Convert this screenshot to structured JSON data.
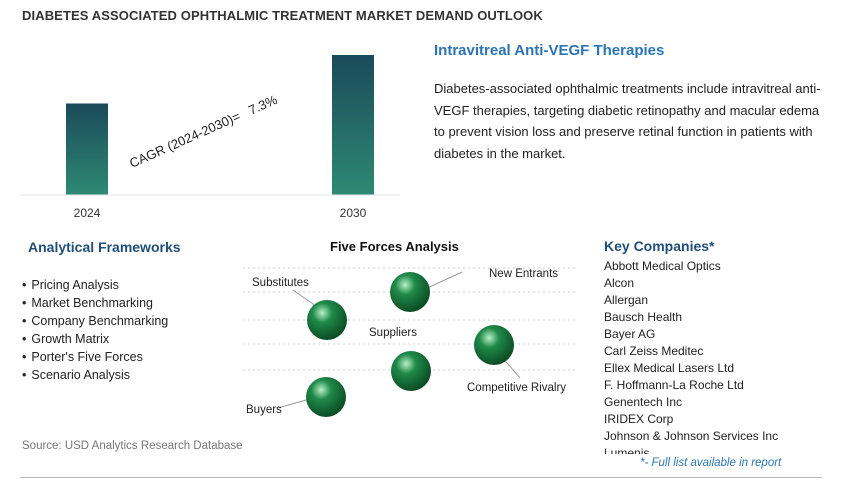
{
  "header": {
    "title": "DIABETES ASSOCIATED OPHTHALMIC TREATMENT MARKET DEMAND OUTLOOK"
  },
  "chart_data": {
    "type": "bar",
    "categories": [
      "2024",
      "2030"
    ],
    "values": [
      1.0,
      1.53
    ],
    "annotation": "CAGR (2024-2030)=   7.3%",
    "colors": {
      "bar_top": "#1b4a5a",
      "bar_bottom": "#2e8a73"
    }
  },
  "segment": {
    "title": "Intravitreal Anti-VEGF Therapies",
    "description": "Diabetes-associated ophthalmic treatments include intravitreal anti-VEGF therapies, targeting diabetic retinopathy and macular edema to prevent vision loss and preserve retinal function in patients with diabetes in the market."
  },
  "frameworks": {
    "title": "Analytical Frameworks",
    "items": [
      "Pricing Analysis",
      "Market Benchmarking",
      "Company Benchmarking",
      "Growth Matrix",
      "Porter's Five Forces",
      "Scenario Analysis"
    ]
  },
  "five_forces": {
    "title": "Five Forces Analysis",
    "labels": {
      "substitutes": "Substitutes",
      "new_entrants": "New Entrants",
      "suppliers": "Suppliers",
      "competitive_rivalry": "Competitive Rivalry",
      "buyers": "Buyers"
    },
    "sphere_color": "#1f8a4a"
  },
  "companies": {
    "title": "Key Companies*",
    "items": [
      "Abbott Medical Optics",
      "Alcon",
      "Allergan",
      "Bausch Health",
      "Bayer AG",
      "Carl Zeiss Meditec",
      "Ellex Medical Lasers Ltd",
      "F. Hoffmann-La Roche Ltd",
      "Genentech Inc",
      "IRIDEX Corp",
      "Johnson & Johnson Services Inc",
      "Lumenis"
    ],
    "footnote": "*- Full list available in report"
  },
  "source": "Source: USD Analytics Research Database"
}
